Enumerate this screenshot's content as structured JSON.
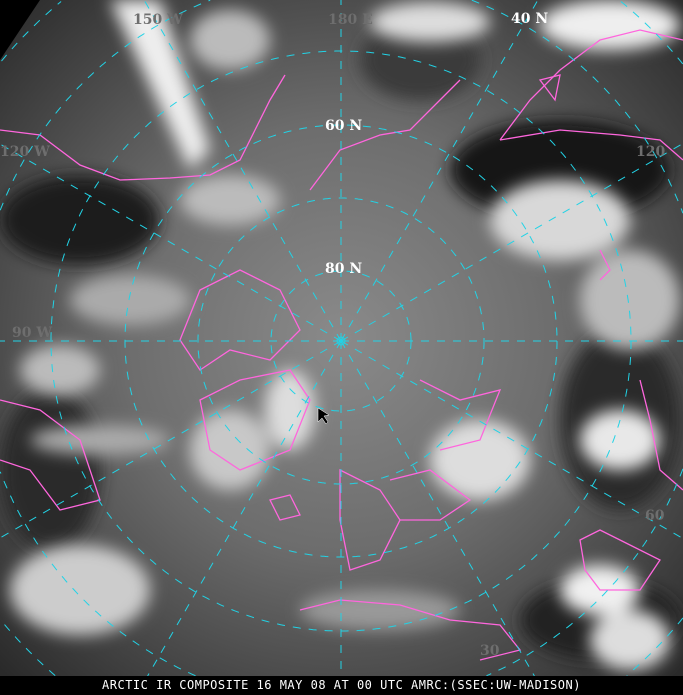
{
  "caption": "ARCTIC IR COMPOSITE 16 MAY 08 AT 00 UTC AMRC:(SSEC:UW-MADISON)",
  "labels": {
    "lat_40": "40 N",
    "lat_60": "60 N",
    "lat_80": "80 N",
    "lon_150w": "150 W",
    "lon_180": "180 E",
    "lon_120w": "120 W",
    "lon_90w": "90 W",
    "lon_120e": "120",
    "lon_60e": "60",
    "lon_30e": "30"
  },
  "colors": {
    "grid": "#22d3e6",
    "coastline": "#ff66dd",
    "bright_label": "#ffffff",
    "faint_label": "#6e6e6e"
  }
}
